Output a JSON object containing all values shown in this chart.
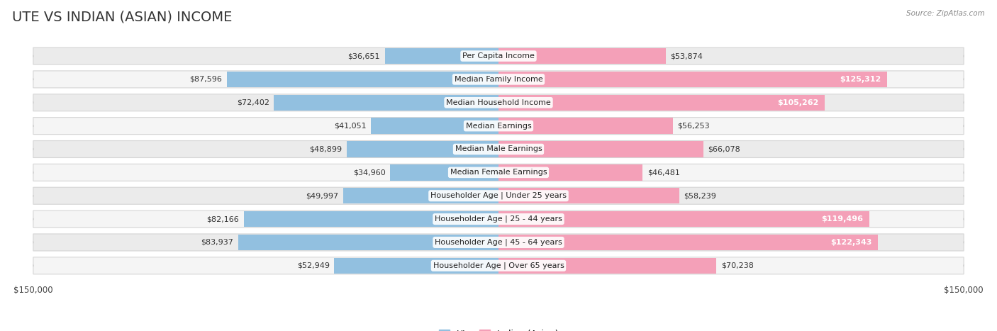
{
  "title": "UTE VS INDIAN (ASIAN) INCOME",
  "source": "Source: ZipAtlas.com",
  "categories": [
    "Per Capita Income",
    "Median Family Income",
    "Median Household Income",
    "Median Earnings",
    "Median Male Earnings",
    "Median Female Earnings",
    "Householder Age | Under 25 years",
    "Householder Age | 25 - 44 years",
    "Householder Age | 45 - 64 years",
    "Householder Age | Over 65 years"
  ],
  "ute_values": [
    36651,
    87596,
    72402,
    41051,
    48899,
    34960,
    49997,
    82166,
    83937,
    52949
  ],
  "indian_values": [
    53874,
    125312,
    105262,
    56253,
    66078,
    46481,
    58239,
    119496,
    122343,
    70238
  ],
  "ute_labels": [
    "$36,651",
    "$87,596",
    "$72,402",
    "$41,051",
    "$48,899",
    "$34,960",
    "$49,997",
    "$82,166",
    "$83,937",
    "$52,949"
  ],
  "indian_labels": [
    "$53,874",
    "$125,312",
    "$105,262",
    "$56,253",
    "$66,078",
    "$46,481",
    "$58,239",
    "$119,496",
    "$122,343",
    "$70,238"
  ],
  "ute_color": "#92c0e0",
  "indian_color": "#f4a0b8",
  "max_value": 150000,
  "bg_color": "#ffffff",
  "row_bg_even": "#ebebeb",
  "row_bg_odd": "#f5f5f5",
  "legend_ute": "Ute",
  "legend_indian": "Indian (Asian)",
  "title_fontsize": 14,
  "label_fontsize": 8,
  "category_fontsize": 8,
  "axis_label": "$150,000",
  "inside_label_threshold": 100000
}
